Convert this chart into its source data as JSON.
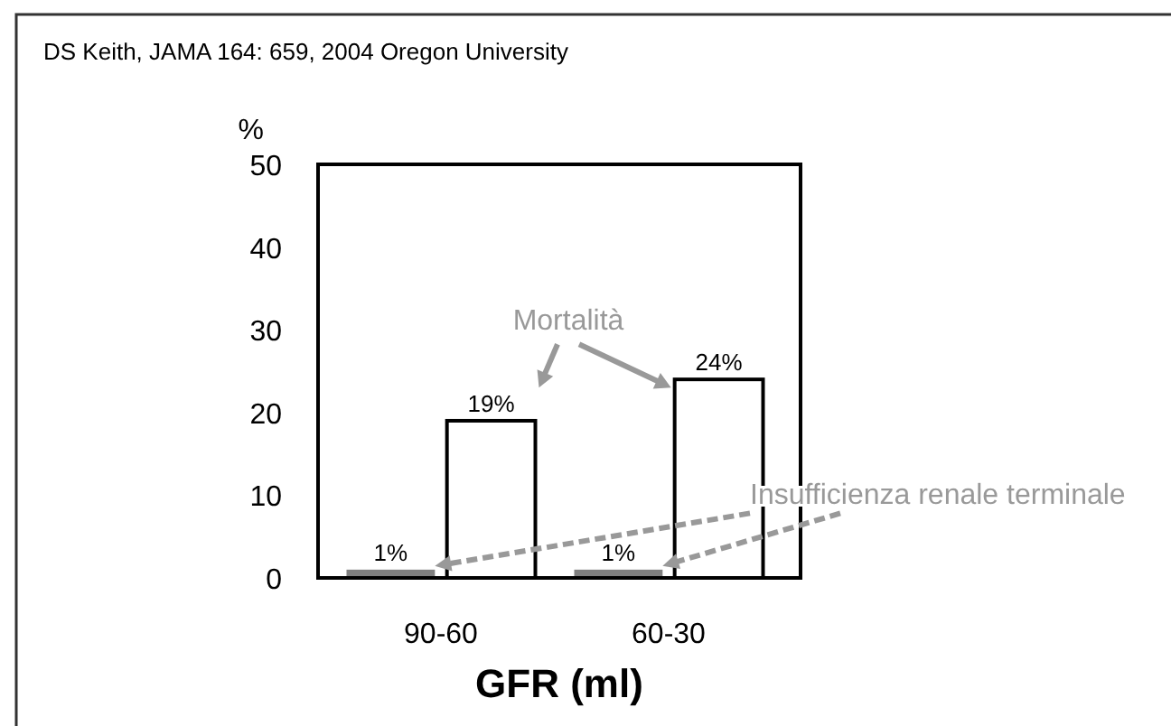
{
  "chart_data": {
    "type": "bar",
    "xlabel": "GFR (ml)",
    "ylabel": "%",
    "categories": [
      "90-60",
      "60-30"
    ],
    "series": [
      {
        "name": "Insufficienza renale terminale",
        "color": "#808080",
        "values": [
          1,
          1
        ],
        "value_labels": [
          "1%",
          "1%"
        ]
      },
      {
        "name": "Mortalità",
        "color": "#ffffff",
        "values": [
          19,
          24
        ],
        "value_labels": [
          "19%",
          "24%"
        ]
      }
    ],
    "ylim": [
      0,
      50
    ],
    "yticks": [
      0,
      10,
      20,
      30,
      40,
      50
    ],
    "grid": false,
    "annotations": [
      "DS Keith, JAMA 164: 659, 2004  Oregon University"
    ]
  }
}
